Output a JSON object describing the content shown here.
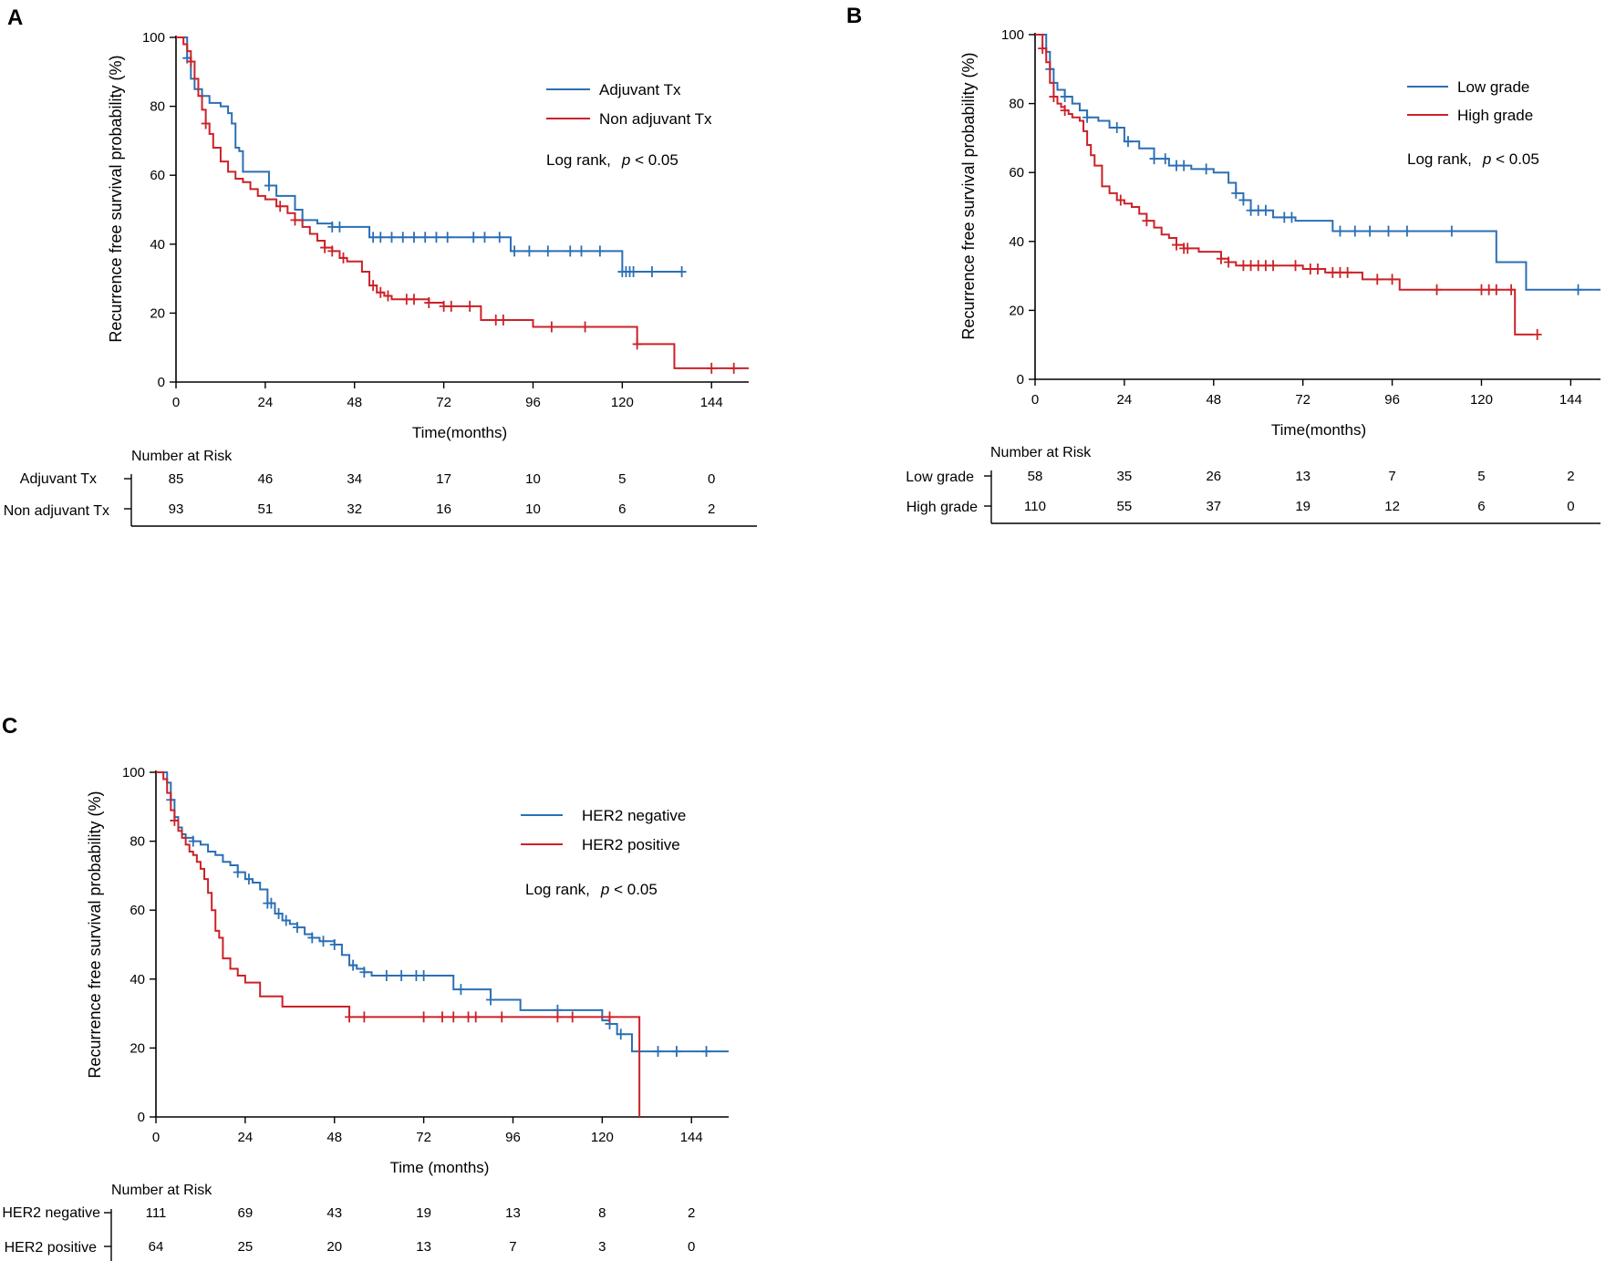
{
  "colors": {
    "blue": "#2b6fb5",
    "red": "#cc2127",
    "axis": "#000000"
  },
  "chart_data": [
    {
      "panel": "A",
      "type": "line",
      "subtype": "kaplan-meier",
      "xlabel": "Time(months)",
      "ylabel": "Recurrence free survival probability (%)",
      "xlim": [
        0,
        154
      ],
      "ylim": [
        0,
        100
      ],
      "xticks": [
        0,
        24,
        48,
        72,
        96,
        120,
        144
      ],
      "yticks": [
        0,
        20,
        40,
        60,
        80,
        100
      ],
      "logrank_prefix": "Log rank,",
      "logrank_p": "p",
      "logrank_suffix": " < 0.05",
      "series": [
        {
          "name": "Adjuvant Tx",
          "color": "#2b6fb5",
          "x": [
            0,
            3,
            4,
            5,
            7,
            9,
            12,
            14,
            15,
            16,
            17,
            18,
            25,
            27,
            32,
            34,
            38,
            42,
            48,
            52,
            90,
            120,
            136
          ],
          "y": [
            100,
            94,
            88,
            85,
            83,
            81,
            80,
            78,
            75,
            68,
            67,
            61,
            57,
            54,
            50,
            47,
            46,
            45,
            45,
            42,
            38,
            32,
            32
          ],
          "censor_x": [
            3,
            25,
            34,
            42,
            44,
            53,
            55,
            58,
            61,
            64,
            67,
            70,
            73,
            80,
            83,
            87,
            91,
            95,
            100,
            106,
            109,
            114,
            120,
            121,
            122,
            123,
            128,
            136
          ],
          "at_risk": [
            85,
            46,
            34,
            17,
            10,
            5,
            0
          ]
        },
        {
          "name": "Non adjuvant Tx",
          "color": "#cc2127",
          "x": [
            0,
            2,
            3,
            4,
            5,
            6,
            7,
            8,
            9,
            10,
            12,
            14,
            16,
            18,
            20,
            22,
            24,
            27,
            30,
            32,
            34,
            36,
            38,
            40,
            42,
            44,
            46,
            48,
            50,
            52,
            54,
            56,
            58,
            62,
            68,
            72,
            80,
            82,
            86,
            96,
            104,
            112,
            124,
            130,
            134,
            142,
            154
          ],
          "y": [
            100,
            98,
            96,
            93,
            88,
            83,
            79,
            75,
            72,
            68,
            64,
            61,
            59,
            58,
            56,
            54,
            53,
            51,
            49,
            47,
            45,
            43,
            41,
            39,
            38,
            36,
            35,
            35,
            32,
            28,
            26,
            25,
            24,
            24,
            23,
            22,
            22,
            18,
            18,
            16,
            16,
            16,
            11,
            11,
            4,
            4,
            4
          ],
          "censor_x": [
            4,
            8,
            28,
            32,
            40,
            42,
            45,
            53,
            55,
            57,
            62,
            64,
            68,
            72,
            74,
            79,
            86,
            88,
            101,
            110,
            124,
            144,
            150
          ],
          "at_risk": [
            93,
            51,
            32,
            16,
            10,
            6,
            2
          ]
        }
      ],
      "legend_position": "top-right",
      "risk_table_title": "Number at Risk",
      "risk_times": [
        0,
        24,
        48,
        72,
        96,
        120,
        144
      ]
    },
    {
      "panel": "B",
      "type": "line",
      "subtype": "kaplan-meier",
      "xlabel": "Time(months)",
      "ylabel": "Recurrence free survival probability (%)",
      "xlim": [
        0,
        152
      ],
      "ylim": [
        0,
        100
      ],
      "xticks": [
        0,
        24,
        48,
        72,
        96,
        120,
        144
      ],
      "yticks": [
        0,
        20,
        40,
        60,
        80,
        100
      ],
      "logrank_prefix": "Log rank,",
      "logrank_p": "p",
      "logrank_suffix": " < 0.05",
      "series": [
        {
          "name": "Low grade",
          "color": "#2b6fb5",
          "x": [
            0,
            3,
            4,
            5,
            6,
            8,
            10,
            12,
            14,
            17,
            20,
            24,
            28,
            32,
            36,
            42,
            48,
            52,
            54,
            56,
            58,
            64,
            70,
            80,
            86,
            100,
            122,
            124,
            132,
            152
          ],
          "y": [
            100,
            95,
            90,
            86,
            84,
            82,
            80,
            78,
            76,
            75,
            73,
            69,
            67,
            64,
            62,
            61,
            60,
            57,
            54,
            52,
            49,
            47,
            46,
            43,
            43,
            43,
            43,
            34,
            26,
            26
          ],
          "censor_x": [
            4,
            8,
            14,
            22,
            25,
            32,
            35,
            38,
            40,
            46,
            54,
            56,
            58,
            60,
            62,
            67,
            69,
            82,
            86,
            90,
            95,
            100,
            112,
            146
          ],
          "at_risk": [
            58,
            35,
            26,
            13,
            7,
            5,
            2
          ]
        },
        {
          "name": "High grade",
          "color": "#cc2127",
          "x": [
            0,
            2,
            3,
            4,
            5,
            6,
            7,
            8,
            9,
            10,
            12,
            13,
            14,
            15,
            16,
            18,
            20,
            22,
            24,
            26,
            28,
            30,
            32,
            34,
            36,
            38,
            40,
            44,
            50,
            52,
            54,
            58,
            64,
            72,
            78,
            88,
            98,
            104,
            110,
            116,
            124,
            129,
            134
          ],
          "y": [
            100,
            96,
            92,
            86,
            82,
            80,
            79,
            78,
            77,
            76,
            75,
            72,
            68,
            65,
            62,
            56,
            54,
            52,
            51,
            50,
            48,
            46,
            44,
            42,
            41,
            39,
            38,
            37,
            35,
            34,
            33,
            33,
            33,
            32,
            31,
            29,
            26,
            26,
            26,
            26,
            26,
            13,
            13
          ],
          "censor_x": [
            2,
            5,
            8,
            23,
            30,
            38,
            40,
            41,
            50,
            52,
            56,
            58,
            60,
            62,
            64,
            70,
            74,
            76,
            80,
            82,
            84,
            92,
            96,
            108,
            120,
            122,
            124,
            128,
            135
          ],
          "at_risk": [
            110,
            55,
            37,
            19,
            12,
            6,
            0
          ]
        }
      ],
      "legend_position": "top-right",
      "risk_table_title": "Number at Risk",
      "risk_times": [
        0,
        24,
        48,
        72,
        96,
        120,
        144
      ]
    },
    {
      "panel": "C",
      "type": "line",
      "subtype": "kaplan-meier",
      "xlabel": "Time (months)",
      "ylabel": "Recurrence free survival probability (%)",
      "xlim": [
        0,
        154
      ],
      "ylim": [
        0,
        100
      ],
      "xticks": [
        0,
        24,
        48,
        72,
        96,
        120,
        144
      ],
      "yticks": [
        0,
        20,
        40,
        60,
        80,
        100
      ],
      "logrank_prefix": "Log rank,",
      "logrank_p": "p",
      "logrank_suffix": " < 0.05",
      "series": [
        {
          "name": "HER2 negative",
          "color": "#2b6fb5",
          "x": [
            0,
            3,
            4,
            5,
            6,
            7,
            8,
            10,
            12,
            14,
            16,
            18,
            20,
            22,
            24,
            26,
            28,
            30,
            32,
            34,
            36,
            38,
            40,
            42,
            44,
            48,
            50,
            52,
            54,
            56,
            58,
            62,
            66,
            72,
            80,
            90,
            98,
            110,
            120,
            122,
            124,
            128,
            154
          ],
          "y": [
            100,
            97,
            92,
            87,
            84,
            82,
            81,
            80,
            79,
            77,
            76,
            74,
            73,
            71,
            69,
            68,
            66,
            62,
            59,
            57,
            56,
            55,
            53,
            52,
            51,
            50,
            47,
            44,
            43,
            42,
            41,
            41,
            41,
            41,
            37,
            34,
            31,
            31,
            28,
            27,
            24,
            19,
            19
          ],
          "censor_x": [
            4,
            10,
            22,
            25,
            30,
            31,
            33,
            35,
            38,
            42,
            45,
            48,
            53,
            56,
            62,
            66,
            70,
            72,
            82,
            90,
            108,
            122,
            125,
            135,
            140,
            148
          ],
          "at_risk": [
            111,
            69,
            43,
            19,
            13,
            8,
            2
          ]
        },
        {
          "name": "HER2 positive",
          "color": "#cc2127",
          "x": [
            0,
            2,
            3,
            4,
            5,
            6,
            7,
            8,
            9,
            10,
            11,
            12,
            13,
            14,
            15,
            16,
            17,
            18,
            19,
            20,
            22,
            24,
            28,
            34,
            40,
            52,
            54,
            60,
            100,
            120,
            130,
            130
          ],
          "y": [
            100,
            98,
            94,
            89,
            86,
            83,
            81,
            79,
            77,
            76,
            74,
            72,
            69,
            65,
            60,
            54,
            52,
            46,
            46,
            43,
            41,
            39,
            35,
            32,
            32,
            29,
            29,
            29,
            29,
            29,
            29,
            0
          ],
          "censor_x": [
            5,
            52,
            56,
            72,
            77,
            80,
            84,
            86,
            93,
            108,
            112,
            122
          ],
          "at_risk": [
            64,
            25,
            20,
            13,
            7,
            3,
            0
          ]
        }
      ],
      "legend_position": "top-right",
      "risk_table_title": "Number at Risk",
      "risk_times": [
        0,
        24,
        48,
        72,
        96,
        120,
        144
      ]
    }
  ]
}
